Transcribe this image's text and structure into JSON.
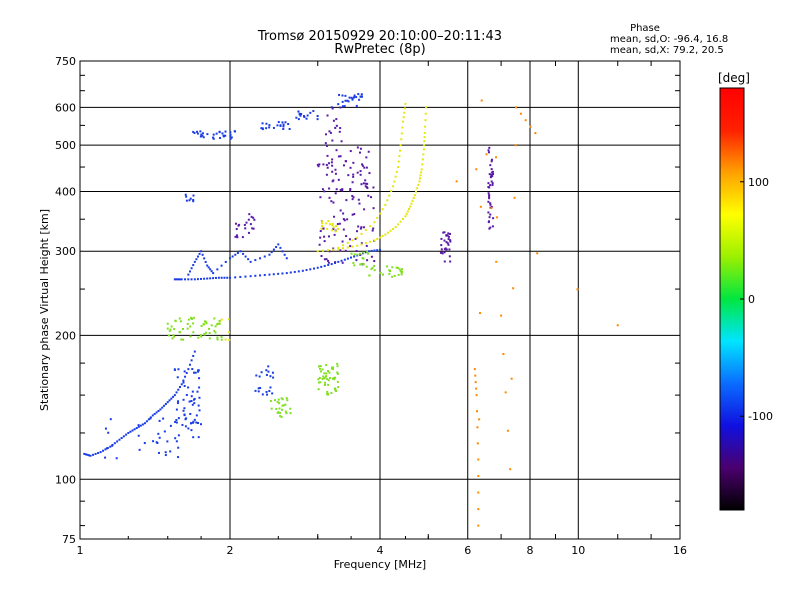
{
  "chart_data": {
    "type": "scatter",
    "title": "Tromsø 20150929 20:10:00–20:11:43",
    "subtitle": "RwPretec (8p)",
    "xlabel": "Frequency [MHz]",
    "ylabel": "Stationary phase Virtual Height [km]",
    "x_scale": "log",
    "y_scale": "log",
    "xlim": [
      1,
      16
    ],
    "ylim": [
      75,
      750
    ],
    "x_ticks": [
      1,
      2,
      4,
      6,
      8,
      10,
      16
    ],
    "x_tick_labels": [
      "1",
      "2",
      "4",
      "6",
      "8",
      "10",
      "16"
    ],
    "y_ticks": [
      75,
      100,
      200,
      300,
      400,
      500,
      600,
      750
    ],
    "y_tick_labels": [
      "75",
      "100",
      "200",
      "300",
      "400",
      "500",
      "600",
      "750"
    ],
    "grid": true,
    "phase_stats": {
      "heading": "Phase",
      "o_line": "mean, sd,O: -96.4, 16.8",
      "x_line": "mean, sd,X:  79.2, 20.5"
    },
    "colorbar": {
      "unit_label": "[deg]",
      "range": [
        -180,
        180
      ],
      "ticks": [
        100,
        0,
        -100
      ],
      "tick_labels": [
        "100",
        "0",
        "-100"
      ],
      "colors": [
        "#000000",
        "#4b006e",
        "#1010e0",
        "#0a6cff",
        "#00e5ff",
        "#00e640",
        "#9cf000",
        "#ffff00",
        "#ffa000",
        "#ff2000",
        "#ff0000"
      ]
    },
    "series": [
      {
        "mode": "O",
        "color": "#1a3ce6",
        "clusters": [
          {
            "points": [
              [
                1.02,
                113
              ],
              [
                1.05,
                112
              ],
              [
                1.1,
                114
              ],
              [
                1.15,
                117
              ],
              [
                1.2,
                121
              ],
              [
                1.25,
                125
              ],
              [
                1.3,
                128
              ],
              [
                1.35,
                131
              ],
              [
                1.4,
                136
              ],
              [
                1.45,
                140
              ],
              [
                1.5,
                145
              ],
              [
                1.55,
                150
              ],
              [
                1.6,
                158
              ],
              [
                1.65,
                170
              ],
              [
                1.7,
                185
              ]
            ]
          },
          {
            "points": [
              [
                1.55,
                262
              ],
              [
                1.6,
                262
              ],
              [
                1.7,
                262
              ],
              [
                1.8,
                263
              ],
              [
                1.9,
                264
              ],
              [
                2.0,
                264
              ],
              [
                2.2,
                266
              ],
              [
                2.4,
                268
              ],
              [
                2.6,
                270
              ],
              [
                2.8,
                273
              ],
              [
                3.0,
                277
              ],
              [
                3.2,
                282
              ],
              [
                3.4,
                288
              ],
              [
                3.6,
                294
              ],
              [
                3.8,
                300
              ],
              [
                4.0,
                302
              ]
            ]
          },
          {
            "points": [
              [
                1.65,
                268
              ],
              [
                1.7,
                285
              ],
              [
                1.75,
                300
              ],
              [
                1.8,
                280
              ],
              [
                1.85,
                270
              ],
              [
                2.0,
                290
              ],
              [
                2.1,
                300
              ],
              [
                2.2,
                285
              ],
              [
                2.4,
                295
              ],
              [
                2.5,
                310
              ],
              [
                2.6,
                290
              ]
            ]
          },
          {
            "x_range": [
              1.55,
              1.75
            ],
            "y_range": [
              120,
              175
            ],
            "n": 60
          },
          {
            "x_range": [
              1.68,
              2.05
            ],
            "y_range": [
              515,
              535
            ],
            "n": 30
          },
          {
            "x_range": [
              2.3,
              2.65
            ],
            "y_range": [
              540,
              560
            ],
            "n": 20
          },
          {
            "x_range": [
              2.7,
              3.0
            ],
            "y_range": [
              565,
              590
            ],
            "n": 15
          },
          {
            "x_range": [
              3.2,
              3.7
            ],
            "y_range": [
              600,
              640
            ],
            "n": 25
          },
          {
            "x_range": [
              1.6,
              1.7
            ],
            "y_range": [
              380,
              395
            ],
            "n": 8
          },
          {
            "x_range": [
              2.25,
              2.45
            ],
            "y_range": [
              150,
              175
            ],
            "n": 20
          },
          {
            "x_range": [
              1.1,
              1.6
            ],
            "y_range": [
              110,
              135
            ],
            "n": 30
          }
        ]
      },
      {
        "mode": "O-purple",
        "color": "#5a1aa8",
        "clusters": [
          {
            "x_range": [
              3.0,
              3.9
            ],
            "y_range": [
              280,
              500
            ],
            "n": 120
          },
          {
            "x_range": [
              3.1,
              3.35
            ],
            "y_range": [
              420,
              600
            ],
            "n": 30
          },
          {
            "x_range": [
              5.3,
              5.55
            ],
            "y_range": [
              285,
              330
            ],
            "n": 30
          },
          {
            "x_range": [
              6.6,
              6.75
            ],
            "y_range": [
              330,
              500
            ],
            "n": 40
          },
          {
            "x_range": [
              2.05,
              2.25
            ],
            "y_range": [
              320,
              360
            ],
            "n": 20
          }
        ]
      },
      {
        "mode": "X",
        "color": "#e6e60a",
        "clusters": [
          {
            "points": [
              [
                3.0,
                300
              ],
              [
                3.3,
                303
              ],
              [
                3.6,
                308
              ],
              [
                3.9,
                316
              ],
              [
                4.1,
                325
              ],
              [
                4.3,
                337
              ],
              [
                4.5,
                355
              ],
              [
                4.6,
                372
              ],
              [
                4.7,
                393
              ],
              [
                4.8,
                420
              ],
              [
                4.85,
                445
              ],
              [
                4.9,
                490
              ],
              [
                4.92,
                530
              ],
              [
                4.95,
                600
              ]
            ]
          },
          {
            "points": [
              [
                3.3,
                305
              ],
              [
                3.6,
                320
              ],
              [
                3.9,
                345
              ],
              [
                4.1,
                375
              ],
              [
                4.25,
                410
              ],
              [
                4.35,
                450
              ],
              [
                4.4,
                500
              ],
              [
                4.45,
                560
              ],
              [
                4.5,
                610
              ]
            ]
          },
          {
            "x_range": [
              3.05,
              3.3
            ],
            "y_range": [
              330,
              350
            ],
            "n": 15
          },
          {
            "x_range": [
              1.9,
              2.0
            ],
            "y_range": [
              195,
              230
            ],
            "n": 6
          }
        ]
      },
      {
        "mode": "X-green",
        "color": "#80e020",
        "clusters": [
          {
            "x_range": [
              1.5,
              1.95
            ],
            "y_range": [
              195,
              218
            ],
            "n": 60
          },
          {
            "x_range": [
              3.0,
              3.3
            ],
            "y_range": [
              150,
              175
            ],
            "n": 50
          },
          {
            "x_range": [
              2.4,
              2.65
            ],
            "y_range": [
              135,
              148
            ],
            "n": 25
          },
          {
            "x_range": [
              3.8,
              4.5
            ],
            "y_range": [
              265,
              280
            ],
            "n": 25
          },
          {
            "x_range": [
              3.5,
              3.8
            ],
            "y_range": [
              275,
              300
            ],
            "n": 15
          }
        ]
      },
      {
        "mode": "sparse",
        "color": "#ff8800",
        "clusters": [
          {
            "points": [
              [
                6.2,
                170
              ],
              [
                6.25,
                150
              ],
              [
                6.3,
                110
              ],
              [
                6.3,
                80
              ],
              [
                6.4,
                620
              ],
              [
                7.0,
                220
              ],
              [
                7.3,
                105
              ],
              [
                7.5,
                600
              ],
              [
                8.2,
                530
              ],
              [
                5.7,
                420
              ],
              [
                12.0,
                210
              ]
            ]
          }
        ]
      }
    ]
  }
}
